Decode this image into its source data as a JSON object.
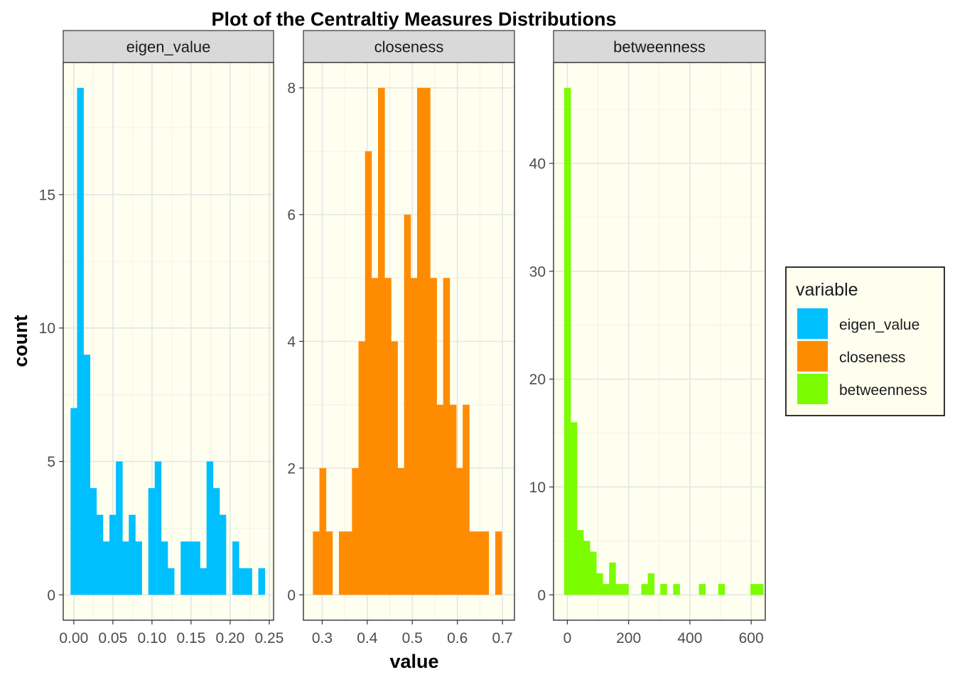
{
  "chart_data": {
    "type": "bar",
    "title": "Plot of the Centraltiy Measures Distributions",
    "xlabel": "value",
    "ylabel": "count",
    "grid": true,
    "legend": {
      "title": "variable",
      "position": "right",
      "entries": [
        {
          "name": "eigen_value",
          "color": "#00BFFF"
        },
        {
          "name": "closeness",
          "color": "#FF8C00"
        },
        {
          "name": "betweenness",
          "color": "#7CFC00"
        }
      ]
    },
    "panels": [
      {
        "name": "eigen_value",
        "color": "#00BFFF",
        "xlim": [
          -0.0135,
          0.2555
        ],
        "ylim": [
          -0.95,
          19.95
        ],
        "x_ticks": [
          0.0,
          0.05,
          0.1,
          0.15,
          0.2,
          0.25
        ],
        "x_tick_labels": [
          "0.00",
          "0.05",
          "0.10",
          "0.15",
          "0.20",
          "0.25"
        ],
        "y_ticks": [
          0,
          5,
          10,
          15
        ],
        "y_tick_labels": [
          "0",
          "5",
          "10",
          "15"
        ],
        "bin_width": 0.00828,
        "bins": [
          {
            "x": 0.0,
            "count": 7
          },
          {
            "x": 0.0083,
            "count": 19
          },
          {
            "x": 0.0166,
            "count": 9
          },
          {
            "x": 0.0248,
            "count": 4
          },
          {
            "x": 0.0331,
            "count": 3
          },
          {
            "x": 0.0414,
            "count": 2
          },
          {
            "x": 0.0497,
            "count": 3
          },
          {
            "x": 0.058,
            "count": 5
          },
          {
            "x": 0.0662,
            "count": 2
          },
          {
            "x": 0.0745,
            "count": 3
          },
          {
            "x": 0.0828,
            "count": 2
          },
          {
            "x": 0.0911,
            "count": 0
          },
          {
            "x": 0.0994,
            "count": 4
          },
          {
            "x": 0.1076,
            "count": 5
          },
          {
            "x": 0.1159,
            "count": 2
          },
          {
            "x": 0.1242,
            "count": 1
          },
          {
            "x": 0.1325,
            "count": 0
          },
          {
            "x": 0.1408,
            "count": 2
          },
          {
            "x": 0.149,
            "count": 2
          },
          {
            "x": 0.1573,
            "count": 2
          },
          {
            "x": 0.1656,
            "count": 1
          },
          {
            "x": 0.1739,
            "count": 5
          },
          {
            "x": 0.1822,
            "count": 4
          },
          {
            "x": 0.1904,
            "count": 3
          },
          {
            "x": 0.1987,
            "count": 0
          },
          {
            "x": 0.207,
            "count": 2
          },
          {
            "x": 0.2153,
            "count": 1
          },
          {
            "x": 0.2236,
            "count": 1
          },
          {
            "x": 0.2318,
            "count": 0
          },
          {
            "x": 0.2401,
            "count": 1
          }
        ]
      },
      {
        "name": "closeness",
        "color": "#FF8C00",
        "xlim": [
          0.2583,
          0.7266
        ],
        "ylim": [
          -0.4,
          8.4
        ],
        "x_ticks": [
          0.3,
          0.4,
          0.5,
          0.6,
          0.7
        ],
        "x_tick_labels": [
          "0.3",
          "0.4",
          "0.5",
          "0.6",
          "0.7"
        ],
        "y_ticks": [
          0,
          2,
          4,
          6,
          8
        ],
        "y_tick_labels": [
          "0",
          "2",
          "4",
          "6",
          "8"
        ],
        "bin_width": 0.01445,
        "bins": [
          {
            "x": 0.2866,
            "count": 1
          },
          {
            "x": 0.3011,
            "count": 2
          },
          {
            "x": 0.3155,
            "count": 1
          },
          {
            "x": 0.33,
            "count": 0
          },
          {
            "x": 0.3444,
            "count": 1
          },
          {
            "x": 0.3589,
            "count": 1
          },
          {
            "x": 0.3733,
            "count": 2
          },
          {
            "x": 0.3878,
            "count": 4
          },
          {
            "x": 0.4022,
            "count": 7
          },
          {
            "x": 0.4167,
            "count": 5
          },
          {
            "x": 0.4311,
            "count": 8
          },
          {
            "x": 0.4456,
            "count": 5
          },
          {
            "x": 0.46,
            "count": 4
          },
          {
            "x": 0.4745,
            "count": 2
          },
          {
            "x": 0.4889,
            "count": 6
          },
          {
            "x": 0.5034,
            "count": 5
          },
          {
            "x": 0.5178,
            "count": 8
          },
          {
            "x": 0.5323,
            "count": 8
          },
          {
            "x": 0.5467,
            "count": 5
          },
          {
            "x": 0.5612,
            "count": 3
          },
          {
            "x": 0.5756,
            "count": 5
          },
          {
            "x": 0.5901,
            "count": 3
          },
          {
            "x": 0.6045,
            "count": 2
          },
          {
            "x": 0.619,
            "count": 3
          },
          {
            "x": 0.6334,
            "count": 1
          },
          {
            "x": 0.6479,
            "count": 1
          },
          {
            "x": 0.6623,
            "count": 1
          },
          {
            "x": 0.6768,
            "count": 0
          },
          {
            "x": 0.6912,
            "count": 1
          }
        ]
      },
      {
        "name": "betweenness",
        "color": "#7CFC00",
        "xlim": [
          -45,
          646
        ],
        "ylim": [
          -2.35,
          49.35
        ],
        "x_ticks": [
          0,
          200,
          400,
          600
        ],
        "x_tick_labels": [
          "0",
          "200",
          "400",
          "600"
        ],
        "y_ticks": [
          0,
          10,
          20,
          30,
          40
        ],
        "y_tick_labels": [
          "0",
          "10",
          "20",
          "30",
          "40"
        ],
        "bin_width": 20.96,
        "bins": [
          {
            "x": 0,
            "count": 47
          },
          {
            "x": 21,
            "count": 16
          },
          {
            "x": 42,
            "count": 6
          },
          {
            "x": 63,
            "count": 5
          },
          {
            "x": 84,
            "count": 4
          },
          {
            "x": 105,
            "count": 2
          },
          {
            "x": 126,
            "count": 1
          },
          {
            "x": 147,
            "count": 3
          },
          {
            "x": 168,
            "count": 1
          },
          {
            "x": 189,
            "count": 1
          },
          {
            "x": 210,
            "count": 0
          },
          {
            "x": 231,
            "count": 0
          },
          {
            "x": 252,
            "count": 1
          },
          {
            "x": 273,
            "count": 2
          },
          {
            "x": 294,
            "count": 0
          },
          {
            "x": 314,
            "count": 1
          },
          {
            "x": 335,
            "count": 0
          },
          {
            "x": 356,
            "count": 1
          },
          {
            "x": 377,
            "count": 0
          },
          {
            "x": 398,
            "count": 0
          },
          {
            "x": 419,
            "count": 0
          },
          {
            "x": 440,
            "count": 1
          },
          {
            "x": 461,
            "count": 0
          },
          {
            "x": 482,
            "count": 0
          },
          {
            "x": 503,
            "count": 1
          },
          {
            "x": 524,
            "count": 0
          },
          {
            "x": 545,
            "count": 0
          },
          {
            "x": 566,
            "count": 0
          },
          {
            "x": 587,
            "count": 0
          },
          {
            "x": 608,
            "count": 1
          },
          {
            "x": 629,
            "count": 1
          }
        ]
      }
    ]
  }
}
